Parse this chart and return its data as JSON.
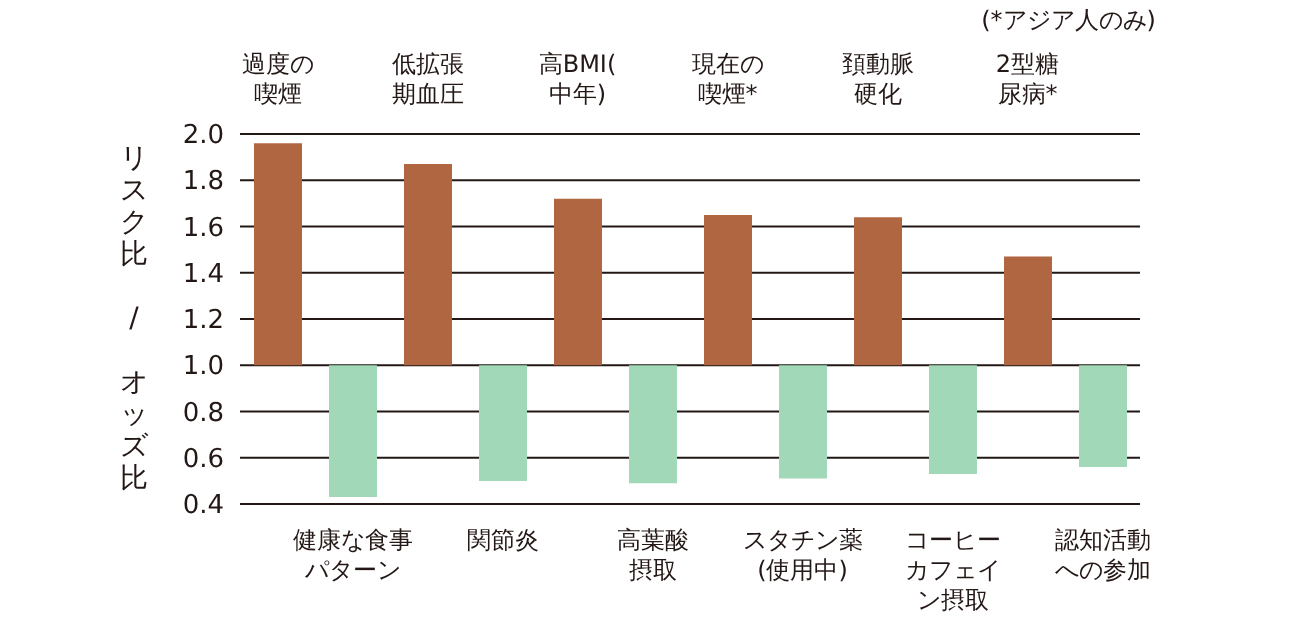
{
  "chart_data": {
    "type": "bar",
    "ylabel": "リスク比 / オッズ比",
    "annotations": [
      "(*アジア人のみ)"
    ],
    "categories": [
      "過度の喫煙",
      "健康な食事パターン",
      "低拡張期血圧",
      "関節炎",
      "高BMI(中年)",
      "高葉酸摂取",
      "現在の喫煙*",
      "スタチン薬(使用中)",
      "頚動脈硬化",
      "コーヒーカフェイン摂取",
      "2型糖尿病*",
      "認知活動への参加"
    ],
    "base": [
      1,
      1,
      1,
      1,
      1,
      1,
      1,
      1,
      1,
      1,
      1,
      1
    ],
    "values": [
      0.96,
      -0.57,
      0.87,
      -0.5,
      0.72,
      -0.51,
      0.65,
      -0.49,
      0.64,
      -0.47,
      0.47,
      -0.44
    ],
    "colors": [
      "#b06640",
      "#a0d8b8",
      "#b06640",
      "#a0d8b8",
      "#b06640",
      "#a0d8b8",
      "#b06640",
      "#a0d8b8",
      "#b06640",
      "#a0d8b8",
      "#b06640",
      "#a0d8b8"
    ],
    "ylim": [
      0.4,
      2.0
    ],
    "yticks": [
      0.4,
      0.6,
      0.8,
      {
        "value": 1,
        "label": "1.0"
      },
      1.2,
      1.4,
      1.6,
      1.8,
      {
        "value": 2,
        "label": "2.0"
      }
    ],
    "grid": "y"
  }
}
